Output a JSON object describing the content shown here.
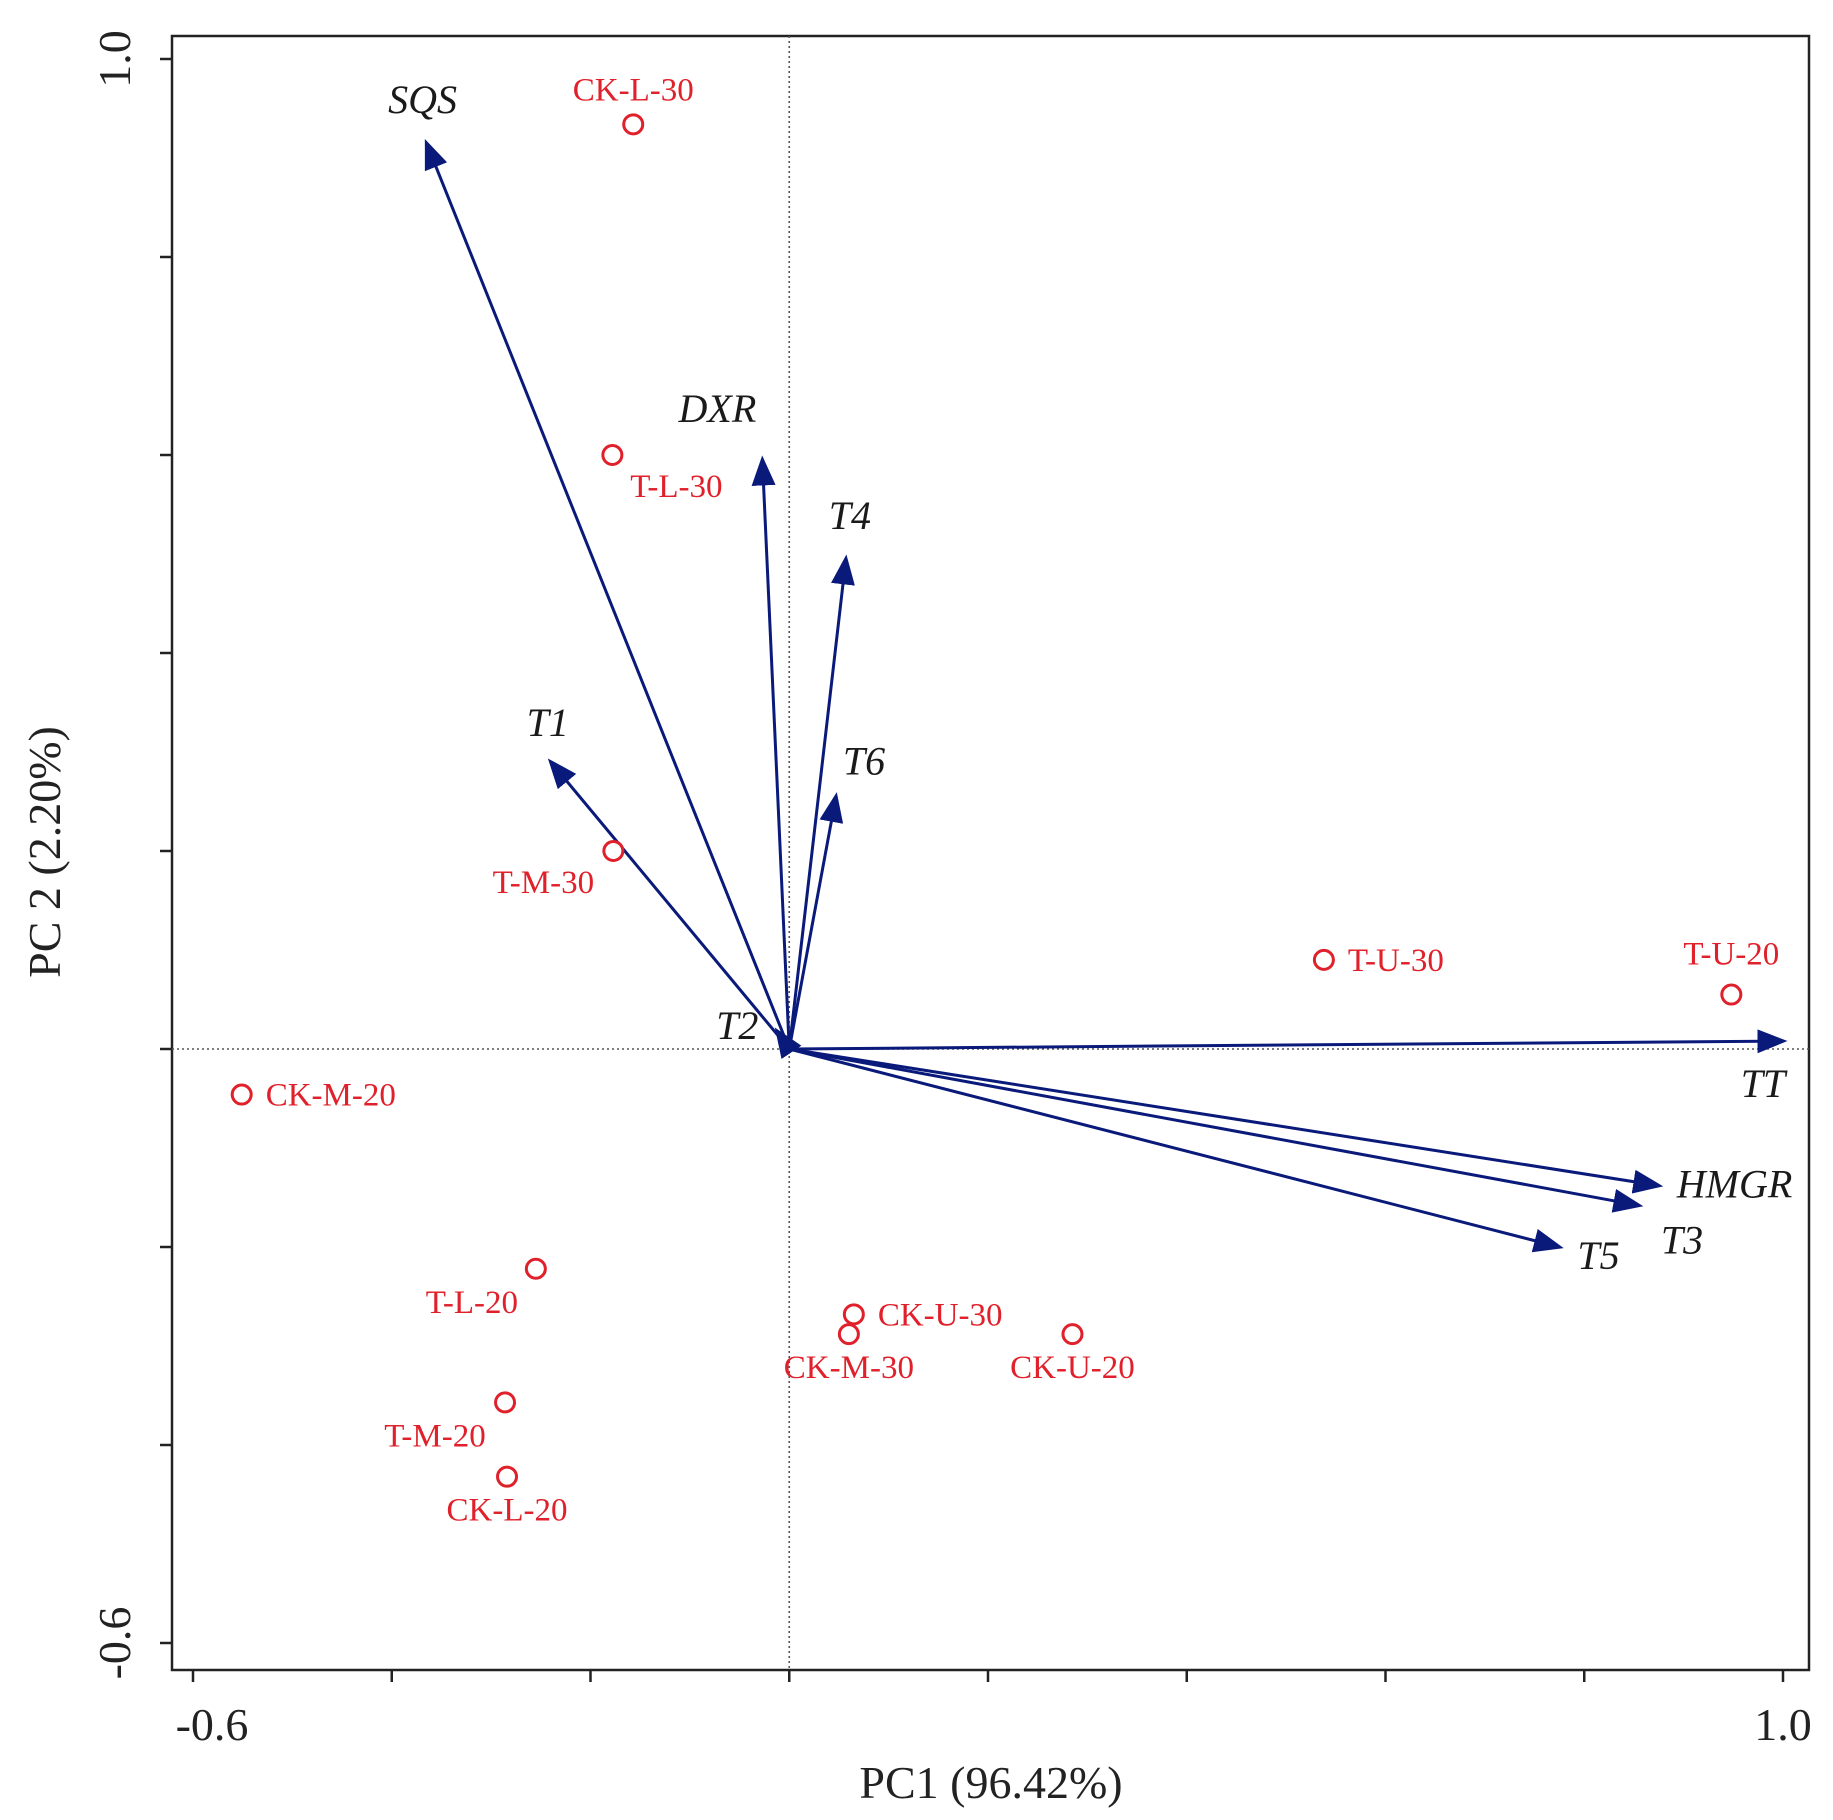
{
  "chart_data": {
    "type": "scatter",
    "subtype": "pca-biplot",
    "xlabel": "PC1 (96.42%)",
    "ylabel": "PC 2 (2.20%)",
    "xlim": [
      -0.6,
      1.0
    ],
    "ylim": [
      -0.6,
      1.0
    ],
    "x_tick_labels": [
      "-0.6",
      "1.0"
    ],
    "y_tick_labels": [
      "1.0",
      "-0.6"
    ],
    "x_minor_ticks": [
      -0.6,
      -0.4,
      -0.2,
      0.0,
      0.2,
      0.4,
      0.6,
      0.8,
      1.0
    ],
    "y_minor_ticks": [
      -0.6,
      -0.4,
      -0.2,
      0.0,
      0.2,
      0.4,
      0.6,
      0.8,
      1.0
    ],
    "reference_lines": {
      "x": 0,
      "y": 0,
      "style": "dotted"
    },
    "colors": {
      "vectors": "#0a1a7a",
      "samples": "#e0202a",
      "axes": "#222222"
    },
    "vectors": [
      {
        "name": "SQS",
        "x": -0.365,
        "y": 0.915
      },
      {
        "name": "DXR",
        "x": -0.027,
        "y": 0.595
      },
      {
        "name": "T4",
        "x": 0.057,
        "y": 0.495
      },
      {
        "name": "T1",
        "x": -0.24,
        "y": 0.29
      },
      {
        "name": "T6",
        "x": 0.047,
        "y": 0.255
      },
      {
        "name": "T2",
        "x": -0.012,
        "y": 0.018
      },
      {
        "name": "TT",
        "x": 1.0,
        "y": 0.008
      },
      {
        "name": "HMGR",
        "x": 0.875,
        "y": -0.138
      },
      {
        "name": "T3",
        "x": 0.855,
        "y": -0.158
      },
      {
        "name": "T5",
        "x": 0.775,
        "y": -0.2
      }
    ],
    "samples": [
      {
        "name": "CK-L-30",
        "x": -0.157,
        "y": 0.934
      },
      {
        "name": "T-L-30",
        "x": -0.178,
        "y": 0.6
      },
      {
        "name": "T-M-30",
        "x": -0.177,
        "y": 0.2
      },
      {
        "name": "T-U-30",
        "x": 0.538,
        "y": 0.09
      },
      {
        "name": "T-U-20",
        "x": 0.948,
        "y": 0.055
      },
      {
        "name": "CK-M-20",
        "x": -0.551,
        "y": -0.046
      },
      {
        "name": "T-L-20",
        "x": -0.255,
        "y": -0.222
      },
      {
        "name": "CK-U-30",
        "x": 0.065,
        "y": -0.268
      },
      {
        "name": "CK-M-30",
        "x": 0.06,
        "y": -0.288
      },
      {
        "name": "CK-U-20",
        "x": 0.285,
        "y": -0.288
      },
      {
        "name": "T-M-20",
        "x": -0.286,
        "y": -0.357
      },
      {
        "name": "CK-L-20",
        "x": -0.284,
        "y": -0.432
      }
    ]
  }
}
